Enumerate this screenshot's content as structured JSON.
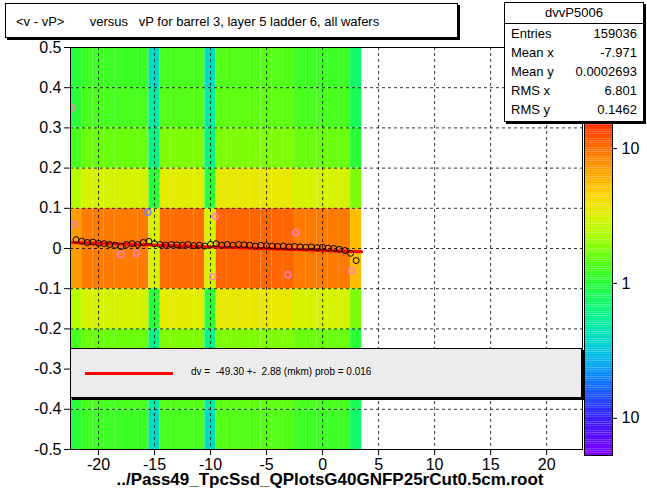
{
  "chart_data": {
    "type": "heatmap",
    "title": "<v - vP>       versus   vP for barrel 3, layer 5 ladder 6, all wafers",
    "x_label": "../Pass49_TpcSsd_QPlotsG40GNFP25rCut0.5cm.root",
    "xlim": [
      -22.5,
      23.2
    ],
    "xticks": [
      -20,
      -15,
      -10,
      -5,
      0,
      5,
      10,
      15,
      20
    ],
    "ylim": [
      -0.5,
      0.5
    ],
    "yticks": [
      -0.5,
      -0.4,
      -0.3,
      -0.2,
      -0.1,
      0,
      0.1,
      0.2,
      0.3,
      0.4,
      0.5
    ],
    "grid": true,
    "log": "z",
    "cells": {
      "xbins": [
        -22.5,
        -21.5,
        -20.5,
        -19.5,
        -18.5,
        -17.5,
        -16.5,
        -15.5,
        -14.5,
        -13.5,
        -12.5,
        -11.5,
        -10.5,
        -9.5,
        -8.5,
        -7.5,
        -6.5,
        -5.5,
        -4.5,
        -3.5,
        -2.5,
        -1.5,
        -0.5,
        0.5,
        1.5,
        2.5,
        3.5
      ],
      "ybins": [
        -0.5,
        -0.4,
        -0.3,
        -0.2,
        -0.1,
        0,
        0.1,
        0.2,
        0.3,
        0.4,
        0.5
      ],
      "counts": [
        [
          1,
          1.2,
          1.2,
          1.2,
          1.2,
          1.2,
          1.2,
          0.4,
          1.3,
          1.3,
          1.3,
          1.3,
          0.4,
          1.4,
          1.4,
          1.4,
          1.4,
          1.4,
          1.4,
          1.4,
          1.2,
          1.2,
          1.2,
          1.2,
          1.2,
          0.7
        ],
        [
          1,
          1.3,
          1.3,
          1.3,
          1.3,
          1.3,
          1.3,
          0.5,
          1.4,
          1.4,
          1.4,
          1.4,
          0.5,
          1.5,
          1.5,
          1.5,
          1.5,
          1.5,
          1.5,
          1.5,
          1.3,
          1.3,
          1.3,
          1.3,
          1.3,
          0.8
        ],
        [
          1.3,
          1.6,
          1.6,
          1.6,
          1.6,
          1.6,
          1.6,
          0.6,
          1.8,
          1.8,
          1.8,
          1.8,
          0.6,
          1.8,
          1.8,
          1.8,
          1.8,
          1.8,
          1.8,
          1.8,
          1.6,
          1.6,
          1.6,
          1.6,
          1.6,
          1
        ],
        [
          2.4,
          3,
          3,
          3,
          3,
          3,
          3,
          1,
          3.3,
          3.3,
          3.3,
          3.3,
          1,
          3.5,
          3.5,
          3.5,
          3.5,
          3.5,
          3.5,
          3.5,
          3,
          3,
          3,
          3,
          3,
          1.8
        ],
        [
          7,
          9,
          9,
          9,
          9,
          9,
          9,
          3,
          10,
          10,
          10,
          10,
          3,
          10.5,
          10.5,
          10.5,
          10.5,
          10.5,
          10.5,
          10.5,
          9,
          9,
          9,
          9,
          9,
          5.4
        ],
        [
          7,
          9,
          9,
          9,
          9,
          9,
          9,
          3,
          10,
          10,
          10,
          10,
          3,
          10.5,
          10.5,
          10.5,
          10.5,
          10.5,
          10.5,
          10.5,
          9,
          9,
          9,
          9,
          9,
          5.4
        ],
        [
          2.4,
          3,
          3,
          3,
          3,
          3,
          3,
          1,
          3.3,
          3.3,
          3.3,
          3.3,
          1,
          3.5,
          3.5,
          3.5,
          3.5,
          3.5,
          3.5,
          3.5,
          3,
          3,
          3,
          3,
          3,
          1.8
        ],
        [
          1.3,
          1.6,
          1.6,
          1.6,
          1.6,
          1.6,
          1.6,
          0.6,
          1.8,
          1.8,
          1.8,
          1.8,
          0.6,
          1.8,
          1.8,
          1.8,
          1.8,
          1.8,
          1.8,
          1.8,
          1.6,
          1.6,
          1.6,
          1.6,
          1.6,
          1
        ],
        [
          1,
          1.3,
          1.3,
          1.3,
          1.3,
          1.3,
          1.3,
          0.5,
          1.4,
          1.4,
          1.4,
          1.4,
          0.5,
          1.5,
          1.5,
          1.5,
          1.5,
          1.5,
          1.5,
          1.5,
          1.3,
          1.3,
          1.3,
          1.3,
          1.3,
          0.8
        ],
        [
          1,
          1.2,
          1.2,
          1.2,
          1.2,
          1.2,
          1.2,
          0.4,
          1.3,
          1.3,
          1.3,
          1.3,
          0.4,
          1.4,
          1.4,
          1.4,
          1.4,
          1.4,
          1.4,
          1.4,
          1.2,
          1.2,
          1.2,
          1.2,
          1.2,
          0.7
        ]
      ],
      "zlim": [
        0.053,
        16.7
      ],
      "zticks": [
        {
          "value": 0.1,
          "label": "10"
        },
        1,
        10
      ]
    },
    "profile": {
      "type": "scatter",
      "marker": "circle",
      "color": "#000000",
      "x": [
        -22,
        -21.5,
        -21,
        -20.5,
        -20,
        -19.5,
        -19,
        -18.5,
        -18,
        -17.5,
        -17,
        -16.5,
        -16,
        -15.5,
        -15,
        -14.5,
        -14,
        -13.5,
        -13,
        -12.5,
        -12,
        -11.5,
        -11,
        -10.5,
        -10,
        -9.5,
        -9,
        -8.5,
        -8,
        -7.5,
        -7,
        -6.5,
        -6,
        -5.5,
        -5,
        -4.5,
        -4,
        -3.5,
        -3,
        -2.5,
        -2,
        -1.5,
        -1,
        -0.5,
        0,
        0.5,
        1,
        1.5,
        2,
        2.5,
        3
      ],
      "values": [
        0.022,
        0.018,
        0.015,
        0.016,
        0.013,
        0.012,
        0.01,
        0.008,
        0.005,
        0.01,
        0.012,
        0.01,
        0.015,
        0.018,
        0.012,
        0.01,
        0.008,
        0.01,
        0.009,
        0.008,
        0.01,
        0.007,
        0.008,
        0.006,
        0.01,
        0.012,
        0.008,
        0.01,
        0.008,
        0.01,
        0.009,
        0.008,
        0.006,
        0.008,
        0.007,
        0.006,
        0.005,
        0.006,
        0.004,
        0.005,
        0.004,
        0.003,
        0.004,
        0.002,
        0.003,
        0.001,
        0,
        -0.002,
        -0.005,
        -0.012,
        -0.03
      ]
    },
    "outliers": {
      "type": "scatter",
      "marker": "circle",
      "x": [
        -22.4,
        -22.2,
        -18,
        -16.6,
        -15.6,
        -9.6,
        -9.8,
        -3.1,
        -2.4,
        2.6
      ],
      "values": [
        0.35,
        0.06,
        -0.015,
        -0.012,
        0.09,
        0.08,
        -0.07,
        -0.065,
        0.04,
        -0.055
      ],
      "colors": [
        "#ff80c0",
        "#ff80c0",
        "#ff80c0",
        "#ff80c0",
        "#8080ff",
        "#ff80c0",
        "#ff80c0",
        "#ff80c0",
        "#ff80c0",
        "#ff80c0"
      ]
    },
    "fit": {
      "type": "line",
      "line_style": "solid",
      "color": "#ff0000",
      "name": "dv =  -49.30 +-  2.88 (mkm) prob = 0.016",
      "x": [
        -22.5,
        3.5
      ],
      "values": [
        0.015,
        -0.008
      ]
    },
    "stats": {
      "title": "dvvP5006",
      "rows": [
        {
          "label": "Entries",
          "value": 159036
        },
        {
          "label": "Mean x",
          "value": -7.971
        },
        {
          "label": "Mean y",
          "value": 0.0002693
        },
        {
          "label": "RMS x",
          "value": 6.801
        },
        {
          "label": "RMS y",
          "value": 0.1462
        }
      ]
    }
  }
}
